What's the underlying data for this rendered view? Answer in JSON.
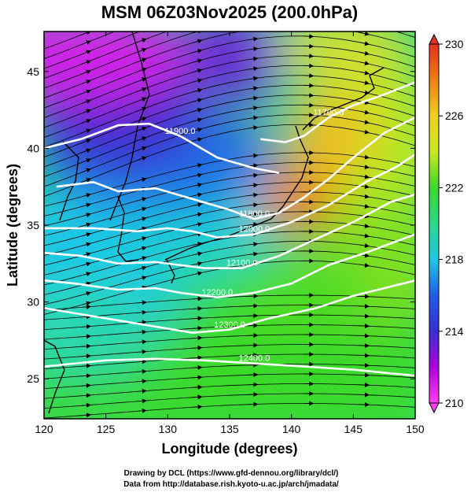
{
  "chart_data": {
    "type": "heatmap",
    "title": "MSM 06Z03Nov2025 (200.0hPa)",
    "xlabel": "Longitude (degrees)",
    "ylabel": "Latitude  (degrees)",
    "xlim": [
      120,
      150
    ],
    "ylim": [
      22.4,
      47.6
    ],
    "x_ticks": [
      120,
      125,
      130,
      135,
      140,
      145,
      150
    ],
    "y_ticks": [
      25,
      30,
      35,
      40,
      45
    ],
    "colorbar": {
      "min": 210,
      "max": 230,
      "ticks": [
        210,
        214,
        218,
        222,
        226,
        230
      ]
    },
    "contours": [
      {
        "label": "11900.0",
        "points": [
          [
            120,
            40.0
          ],
          [
            123,
            40.6
          ],
          [
            126,
            41.5
          ],
          [
            128.5,
            41.6
          ],
          [
            131,
            40.8
          ],
          [
            134,
            39.4
          ],
          [
            137,
            38.7
          ],
          [
            139,
            38.4
          ]
        ]
      },
      {
        "label": "11700.0",
        "points": [
          [
            137.5,
            40.6
          ],
          [
            139.5,
            40.4
          ],
          [
            141,
            40.8
          ],
          [
            143,
            42.0
          ],
          [
            145,
            42.8
          ],
          [
            147.5,
            43.5
          ],
          [
            150,
            44.3
          ]
        ]
      },
      {
        "label": "11800.0",
        "points": [
          [
            121,
            37.5
          ],
          [
            124,
            37.8
          ],
          [
            126,
            37.2
          ],
          [
            129,
            37.4
          ],
          [
            132,
            36.7
          ],
          [
            135,
            36.0
          ],
          [
            137,
            35.4
          ],
          [
            139,
            35.8
          ],
          [
            141,
            36.8
          ],
          [
            143,
            38.0
          ],
          [
            145,
            39.4
          ],
          [
            147.5,
            41.0
          ],
          [
            150,
            42.0
          ]
        ]
      },
      {
        "label": "12000.0",
        "points": [
          [
            120,
            34.8
          ],
          [
            124,
            34.8
          ],
          [
            127.5,
            34.6
          ],
          [
            130,
            34.8
          ],
          [
            132,
            34.6
          ],
          [
            134,
            34.2
          ],
          [
            137,
            34.4
          ],
          [
            140,
            35.2
          ],
          [
            143,
            36.3
          ],
          [
            146,
            37.8
          ],
          [
            148.5,
            38.8
          ],
          [
            150,
            39.6
          ]
        ]
      },
      {
        "label": "12100.0",
        "points": [
          [
            120,
            33.2
          ],
          [
            123,
            33.0
          ],
          [
            126,
            32.5
          ],
          [
            129,
            32.6
          ],
          [
            131,
            32.4
          ],
          [
            133,
            32.2
          ],
          [
            136,
            32.2
          ],
          [
            139,
            33.0
          ],
          [
            142,
            34.1
          ],
          [
            145,
            35.2
          ],
          [
            148,
            36.5
          ],
          [
            150,
            37.0
          ]
        ]
      },
      {
        "label": "12200.0",
        "points": [
          [
            120,
            31.4
          ],
          [
            122.5,
            31.2
          ],
          [
            126,
            30.8
          ],
          [
            129,
            30.9
          ],
          [
            131,
            30.6
          ],
          [
            134,
            30.3
          ],
          [
            137,
            30.6
          ],
          [
            140,
            31.2
          ],
          [
            143,
            32.4
          ],
          [
            146,
            33.2
          ],
          [
            150,
            34.4
          ]
        ]
      },
      {
        "label": "12300.0",
        "points": [
          [
            120,
            29.6
          ],
          [
            123,
            29.2
          ],
          [
            126,
            28.8
          ],
          [
            129,
            28.4
          ],
          [
            132,
            28.0
          ],
          [
            135,
            28.2
          ],
          [
            138,
            28.9
          ],
          [
            142,
            29.6
          ],
          [
            145,
            30.4
          ],
          [
            148,
            31.0
          ],
          [
            150,
            31.4
          ]
        ]
      },
      {
        "label": "12400.0",
        "points": [
          [
            120,
            25.8
          ],
          [
            125,
            26.2
          ],
          [
            129,
            26.3
          ],
          [
            133,
            26.2
          ],
          [
            137,
            26.0
          ],
          [
            141,
            25.8
          ],
          [
            145,
            25.6
          ],
          [
            150,
            25.2
          ]
        ]
      }
    ]
  },
  "credits": {
    "line1": "Drawing by DCL (https://www.gfd-dennou.org/library/dcl/)",
    "line2": "Data from http://database.rish.kyoto-u.ac.jp/arch/jmadata/"
  },
  "colors": {
    "colorbar_stops": [
      "#ff3df5",
      "#b000e0",
      "#3a2fd0",
      "#1f5de8",
      "#1fc8e8",
      "#2ad88a",
      "#3ada2a",
      "#c8e820",
      "#f0d020",
      "#f08010",
      "#e83020"
    ],
    "contour": "#ffffff",
    "vector": "#000000",
    "coast": "#000000"
  }
}
